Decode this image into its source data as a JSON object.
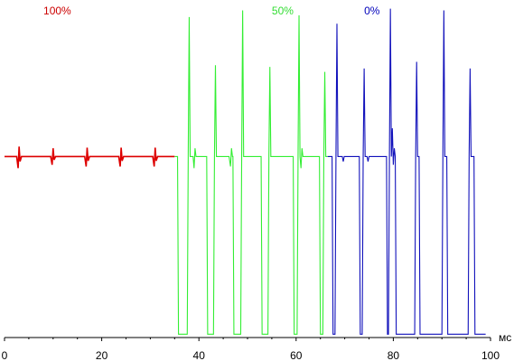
{
  "chart_data": {
    "type": "line",
    "title": "",
    "xlabel": "",
    "ylabel": "",
    "x_unit": "мс",
    "xlim": [
      0,
      100
    ],
    "ylim": [
      0,
      1
    ],
    "grid": false,
    "x_ticks": [
      "0",
      "20",
      "40",
      "60",
      "80",
      "100"
    ],
    "series_labels": [
      {
        "text": "100%",
        "color": "#cc0000",
        "near_x": 8
      },
      {
        "text": "50%",
        "color": "#33dd33",
        "near_x": 55
      },
      {
        "text": "0%",
        "color": "#0000bb",
        "near_x": 74
      }
    ],
    "series": [
      {
        "name": "100%",
        "color": "#dd0000",
        "points": [
          [
            0,
            0.545
          ],
          [
            2.5,
            0.545
          ],
          [
            2.8,
            0.51
          ],
          [
            3.0,
            0.575
          ],
          [
            3.2,
            0.53
          ],
          [
            3.5,
            0.545
          ],
          [
            9.5,
            0.545
          ],
          [
            9.8,
            0.52
          ],
          [
            10.0,
            0.57
          ],
          [
            10.2,
            0.535
          ],
          [
            10.5,
            0.545
          ],
          [
            16.5,
            0.545
          ],
          [
            16.8,
            0.515
          ],
          [
            17.0,
            0.572
          ],
          [
            17.2,
            0.532
          ],
          [
            17.5,
            0.545
          ],
          [
            23.5,
            0.545
          ],
          [
            23.8,
            0.515
          ],
          [
            24.0,
            0.572
          ],
          [
            24.2,
            0.532
          ],
          [
            24.5,
            0.545
          ],
          [
            30.5,
            0.545
          ],
          [
            30.8,
            0.515
          ],
          [
            31.0,
            0.572
          ],
          [
            31.2,
            0.532
          ],
          [
            31.5,
            0.545
          ],
          [
            34.0,
            0.545
          ],
          [
            35.0,
            0.545
          ]
        ]
      },
      {
        "name": "50%",
        "color": "#33ee33",
        "points": [
          [
            35.0,
            0.545
          ],
          [
            35.6,
            0.545
          ],
          [
            35.8,
            0.01
          ],
          [
            37.6,
            0.01
          ],
          [
            37.8,
            0.545
          ],
          [
            38.0,
            0.965
          ],
          [
            38.2,
            0.545
          ],
          [
            38.8,
            0.545
          ],
          [
            39.0,
            0.51
          ],
          [
            39.2,
            0.57
          ],
          [
            39.4,
            0.545
          ],
          [
            41.6,
            0.545
          ],
          [
            41.8,
            0.01
          ],
          [
            43.0,
            0.01
          ],
          [
            43.2,
            0.545
          ],
          [
            43.4,
            0.82
          ],
          [
            43.6,
            0.545
          ],
          [
            46.2,
            0.545
          ],
          [
            46.5,
            0.515
          ],
          [
            46.7,
            0.57
          ],
          [
            46.9,
            0.545
          ],
          [
            47.0,
            0.545
          ],
          [
            47.2,
            0.01
          ],
          [
            48.6,
            0.01
          ],
          [
            48.8,
            0.545
          ],
          [
            49.0,
            0.985
          ],
          [
            49.2,
            0.545
          ],
          [
            52.8,
            0.545
          ],
          [
            53.0,
            0.01
          ],
          [
            54.2,
            0.01
          ],
          [
            54.4,
            0.545
          ],
          [
            54.6,
            0.815
          ],
          [
            54.8,
            0.545
          ],
          [
            59.4,
            0.545
          ],
          [
            59.6,
            0.01
          ],
          [
            60.2,
            0.01
          ],
          [
            60.4,
            0.545
          ],
          [
            60.6,
            0.97
          ],
          [
            60.8,
            0.545
          ],
          [
            61.0,
            0.51
          ],
          [
            61.2,
            0.57
          ],
          [
            61.4,
            0.545
          ],
          [
            64.8,
            0.545
          ],
          [
            65.0,
            0.01
          ],
          [
            65.5,
            0.01
          ],
          [
            65.7,
            0.545
          ],
          [
            65.9,
            0.8
          ],
          [
            66.1,
            0.545
          ],
          [
            66.5,
            0.545
          ]
        ]
      },
      {
        "name": "0%",
        "color": "#1111bb",
        "points": [
          [
            66.5,
            0.545
          ],
          [
            67.4,
            0.545
          ],
          [
            67.6,
            0.01
          ],
          [
            68.0,
            0.01
          ],
          [
            68.2,
            0.545
          ],
          [
            68.4,
            0.945
          ],
          [
            68.6,
            0.545
          ],
          [
            69.5,
            0.545
          ],
          [
            69.7,
            0.53
          ],
          [
            69.9,
            0.545
          ],
          [
            73.0,
            0.545
          ],
          [
            73.2,
            0.01
          ],
          [
            73.6,
            0.01
          ],
          [
            73.8,
            0.545
          ],
          [
            74.0,
            0.81
          ],
          [
            74.2,
            0.545
          ],
          [
            74.6,
            0.545
          ],
          [
            74.8,
            0.53
          ],
          [
            75.0,
            0.545
          ],
          [
            78.6,
            0.545
          ],
          [
            78.8,
            0.01
          ],
          [
            79.0,
            0.01
          ],
          [
            79.2,
            0.545
          ],
          [
            79.4,
            0.99
          ],
          [
            79.6,
            0.545
          ],
          [
            79.8,
            0.63
          ],
          [
            80.0,
            0.52
          ],
          [
            80.2,
            0.57
          ],
          [
            80.4,
            0.545
          ],
          [
            80.6,
            0.01
          ],
          [
            84.4,
            0.01
          ],
          [
            84.6,
            0.545
          ],
          [
            84.8,
            0.83
          ],
          [
            85.0,
            0.545
          ],
          [
            85.3,
            0.545
          ],
          [
            85.5,
            0.01
          ],
          [
            90.0,
            0.01
          ],
          [
            90.2,
            0.545
          ],
          [
            90.4,
            0.985
          ],
          [
            90.6,
            0.545
          ],
          [
            91.0,
            0.545
          ],
          [
            91.2,
            0.01
          ],
          [
            95.4,
            0.01
          ],
          [
            95.6,
            0.545
          ],
          [
            95.8,
            0.81
          ],
          [
            96.0,
            0.545
          ],
          [
            96.6,
            0.545
          ],
          [
            96.8,
            0.01
          ],
          [
            97.2,
            0.01
          ],
          [
            99.0,
            0.01
          ]
        ]
      }
    ]
  }
}
